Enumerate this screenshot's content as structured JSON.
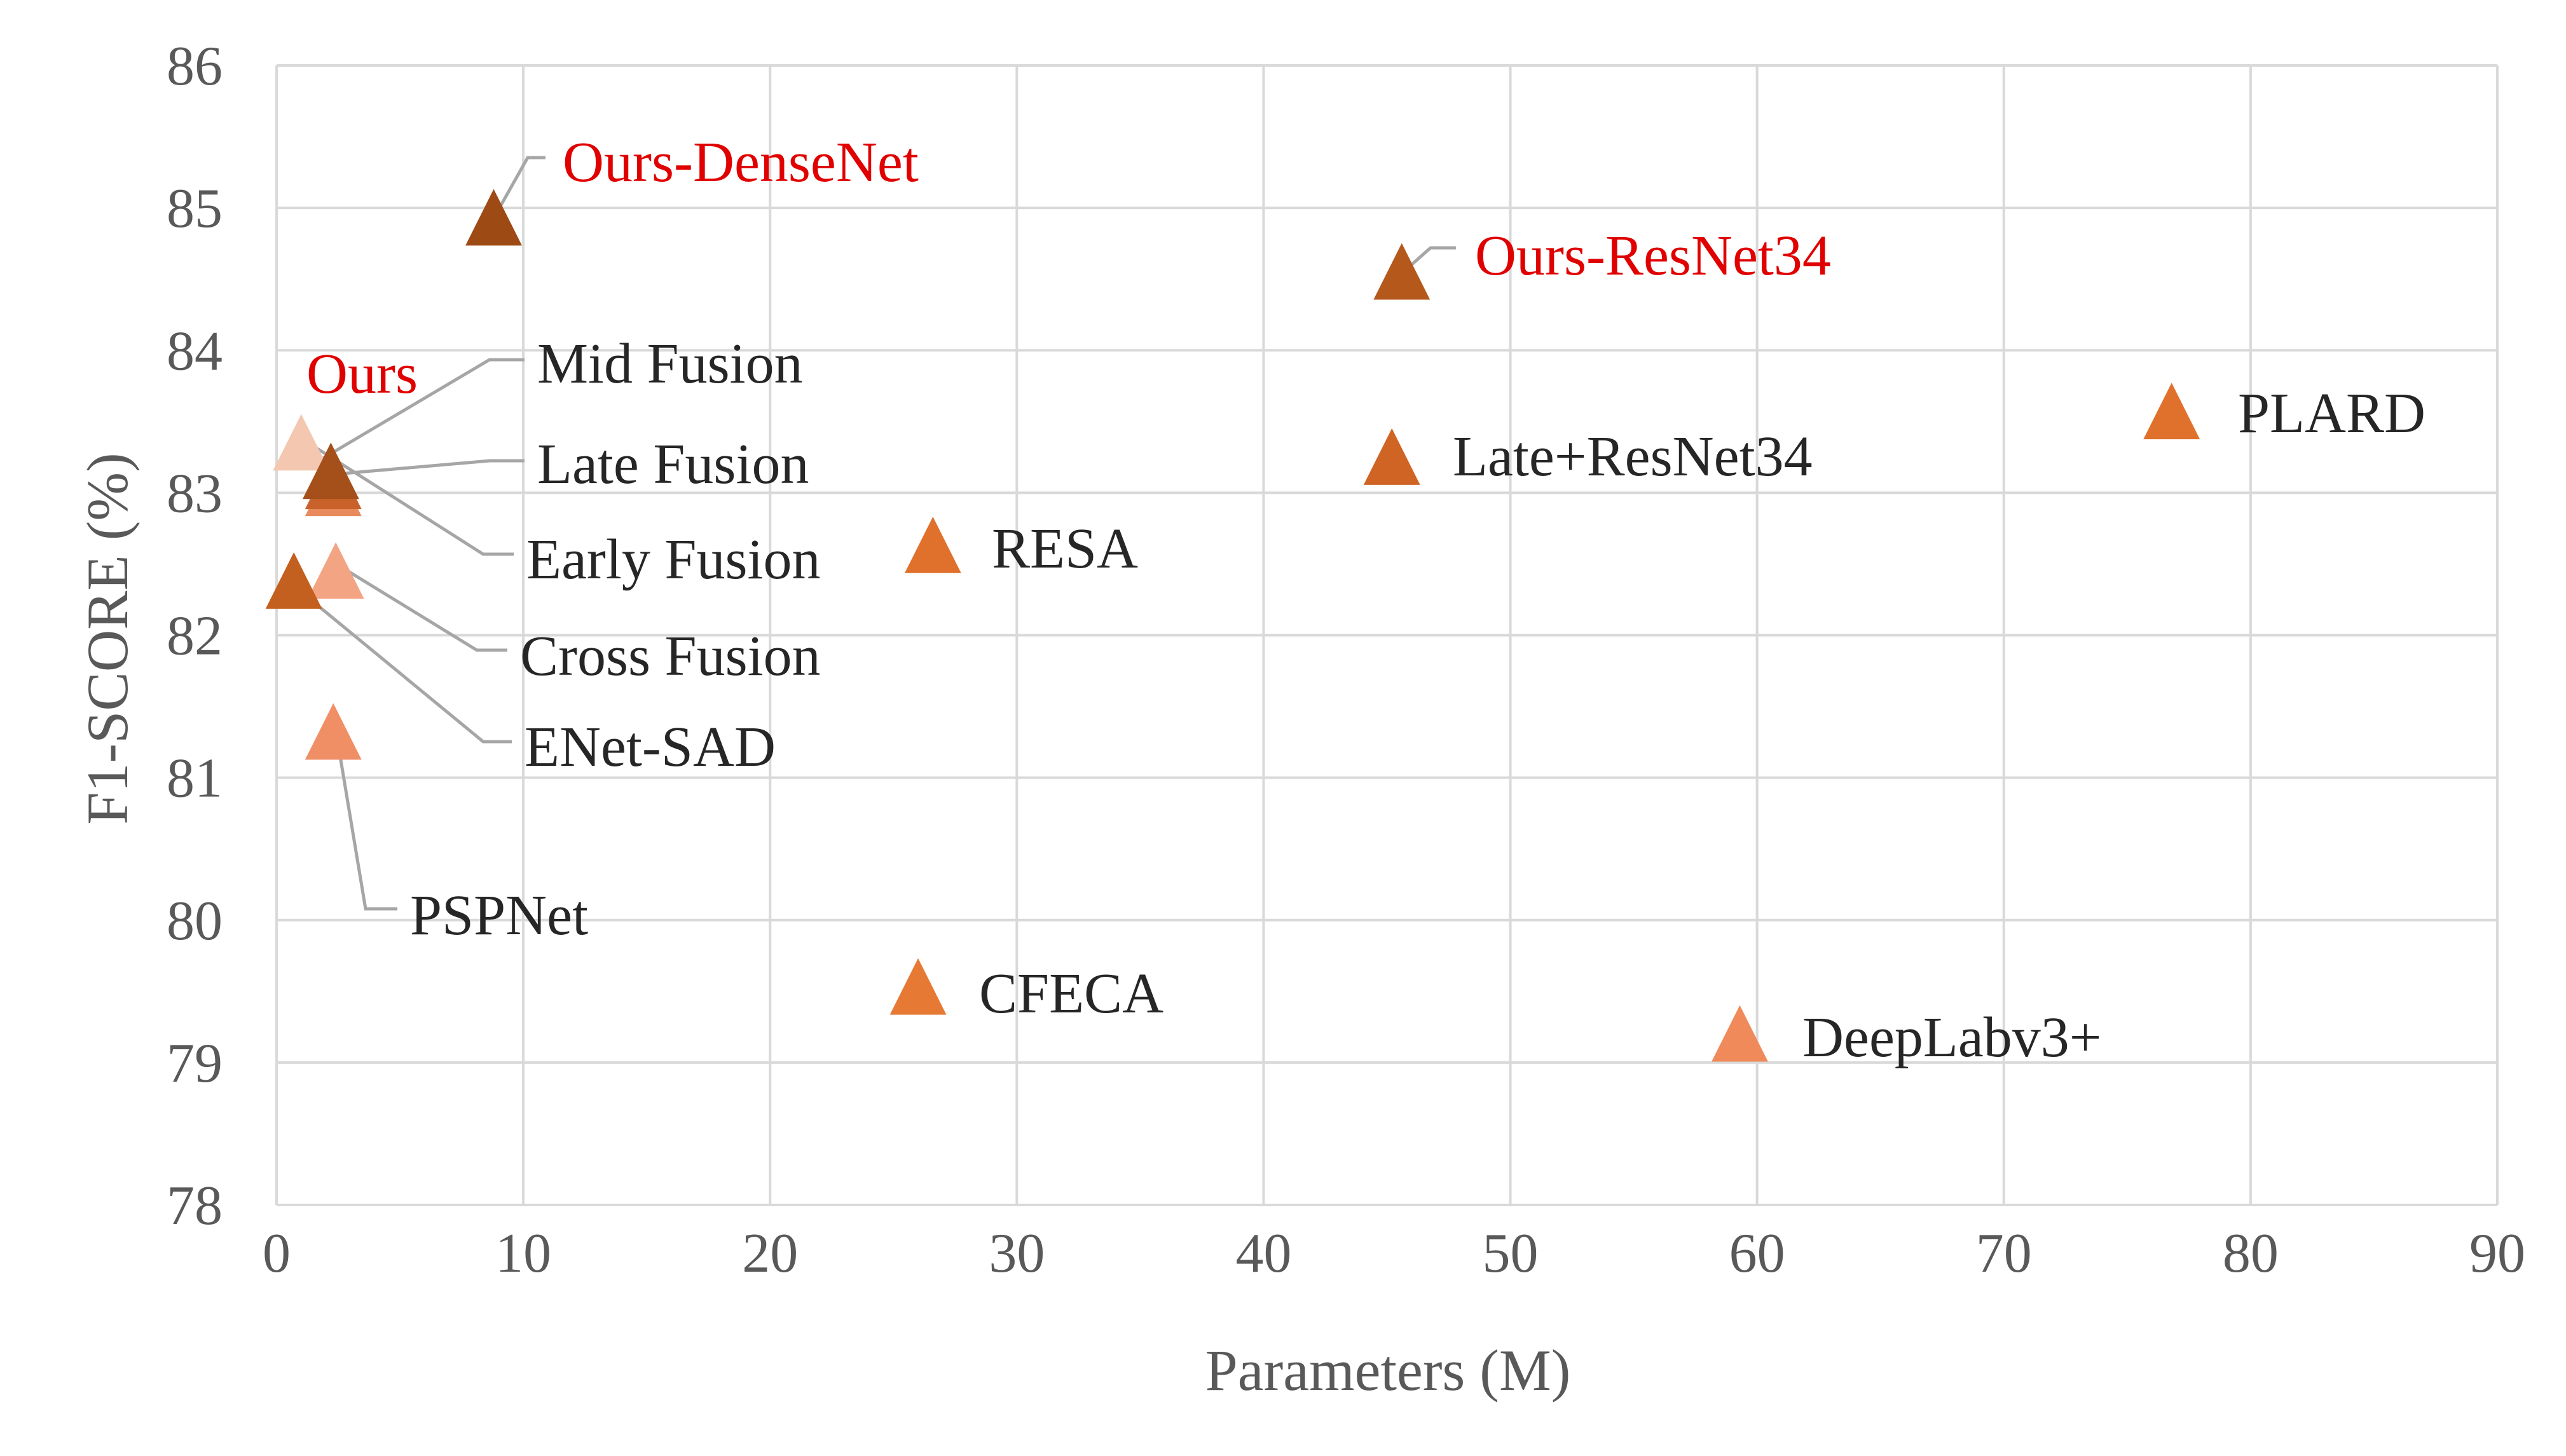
{
  "chart_data": {
    "type": "scatter",
    "title": "",
    "xlabel": "Parameters (M)",
    "ylabel": "F1-SCORE (%)",
    "xlim": [
      0,
      90
    ],
    "ylim": [
      78,
      86
    ],
    "x_ticks": [
      0,
      10,
      20,
      30,
      40,
      50,
      60,
      70,
      80,
      90
    ],
    "y_ticks": [
      78,
      79,
      80,
      81,
      82,
      83,
      84,
      85,
      86
    ],
    "grid": true,
    "marker": "triangle",
    "points": [
      {
        "label": "Ours",
        "x": 1.0,
        "y": 83.35,
        "color": "#f4c7b1",
        "highlight": true
      },
      {
        "label": "Ours-DenseNet",
        "x": 8.8,
        "y": 84.93,
        "color": "#9e4a14",
        "highlight": true
      },
      {
        "label": "Ours-ResNet34",
        "x": 45.6,
        "y": 84.55,
        "color": "#b4581c",
        "highlight": true
      },
      {
        "label": "Mid Fusion",
        "x": 2.2,
        "y": 83.15,
        "color": "#a5501a",
        "highlight": false
      },
      {
        "label": "Late Fusion",
        "x": 2.3,
        "y": 83.08,
        "color": "#c8622a",
        "highlight": false
      },
      {
        "label": "Early Fusion",
        "x": 2.3,
        "y": 83.03,
        "color": "#e88a5c",
        "highlight": false
      },
      {
        "label": "Cross Fusion",
        "x": 2.4,
        "y": 82.45,
        "color": "#f3a483",
        "highlight": false
      },
      {
        "label": "ENet-SAD",
        "x": 0.7,
        "y": 82.38,
        "color": "#c4601f",
        "highlight": false
      },
      {
        "label": "PSPNet",
        "x": 2.3,
        "y": 81.32,
        "color": "#f08e66",
        "highlight": false
      },
      {
        "label": "RESA",
        "x": 26.6,
        "y": 82.63,
        "color": "#e0712c",
        "highlight": false
      },
      {
        "label": "Late+ResNet34",
        "x": 45.2,
        "y": 83.25,
        "color": "#cf6424",
        "highlight": false
      },
      {
        "label": "PLARD",
        "x": 76.8,
        "y": 83.57,
        "color": "#e0712c",
        "highlight": false
      },
      {
        "label": "CFECA",
        "x": 26.0,
        "y": 79.53,
        "color": "#e67a34",
        "highlight": false
      },
      {
        "label": "DeepLabv3+",
        "x": 59.3,
        "y": 79.2,
        "color": "#f08a5a",
        "highlight": false
      }
    ]
  }
}
